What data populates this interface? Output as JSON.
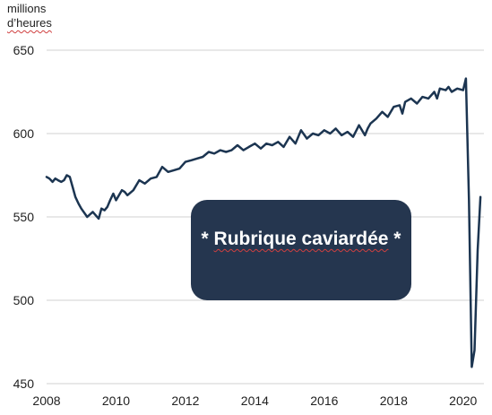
{
  "ylabel_line1": "millions",
  "ylabel_line2": "d’heures",
  "redaction": {
    "prefix": "* ",
    "label": "Rubrique caviardée",
    "suffix": " *",
    "background": "#25364f"
  },
  "chart_data": {
    "type": "line",
    "title": "",
    "ylabel": "millions d’heures",
    "xlabel": "",
    "xlim": [
      2008,
      2020.6
    ],
    "ylim": [
      450,
      650
    ],
    "xticks": [
      2008,
      2010,
      2012,
      2014,
      2016,
      2018,
      2020
    ],
    "yticks": [
      450,
      500,
      550,
      600,
      650
    ],
    "grid": "horizontal",
    "line_color": "#1c3551",
    "series": [
      {
        "name": "",
        "x": [
          2008.0,
          2008.08,
          2008.17,
          2008.25,
          2008.33,
          2008.42,
          2008.5,
          2008.58,
          2008.67,
          2008.75,
          2008.83,
          2008.92,
          2009.0,
          2009.17,
          2009.33,
          2009.5,
          2009.58,
          2009.67,
          2009.75,
          2009.83,
          2009.92,
          2010.0,
          2010.17,
          2010.25,
          2010.33,
          2010.5,
          2010.67,
          2010.83,
          2011.0,
          2011.17,
          2011.33,
          2011.5,
          2011.67,
          2011.83,
          2012.0,
          2012.17,
          2012.33,
          2012.5,
          2012.67,
          2012.83,
          2013.0,
          2013.17,
          2013.33,
          2013.5,
          2013.67,
          2013.83,
          2014.0,
          2014.17,
          2014.33,
          2014.5,
          2014.67,
          2014.83,
          2015.0,
          2015.17,
          2015.33,
          2015.5,
          2015.67,
          2015.83,
          2016.0,
          2016.17,
          2016.33,
          2016.5,
          2016.67,
          2016.83,
          2017.0,
          2017.17,
          2017.25,
          2017.33,
          2017.5,
          2017.67,
          2017.83,
          2018.0,
          2018.17,
          2018.25,
          2018.33,
          2018.5,
          2018.67,
          2018.83,
          2019.0,
          2019.17,
          2019.25,
          2019.33,
          2019.5,
          2019.58,
          2019.67,
          2019.83,
          2020.0,
          2020.08,
          2020.17,
          2020.25,
          2020.33,
          2020.42,
          2020.5
        ],
        "values": [
          574,
          573,
          571,
          573,
          572,
          571,
          572,
          575,
          574,
          568,
          562,
          558,
          555,
          550,
          553,
          549,
          555,
          554,
          556,
          560,
          564,
          560,
          566,
          565,
          563,
          566,
          572,
          570,
          573,
          574,
          580,
          577,
          578,
          579,
          583,
          584,
          585,
          586,
          589,
          588,
          590,
          589,
          590,
          593,
          590,
          592,
          594,
          591,
          594,
          593,
          595,
          592,
          598,
          594,
          602,
          597,
          600,
          599,
          602,
          600,
          603,
          599,
          601,
          598,
          605,
          599,
          603,
          606,
          609,
          613,
          610,
          616,
          617,
          612,
          619,
          621,
          618,
          622,
          621,
          625,
          621,
          627,
          626,
          628,
          625,
          627,
          626,
          633,
          560,
          460,
          470,
          530,
          562
        ]
      }
    ]
  }
}
